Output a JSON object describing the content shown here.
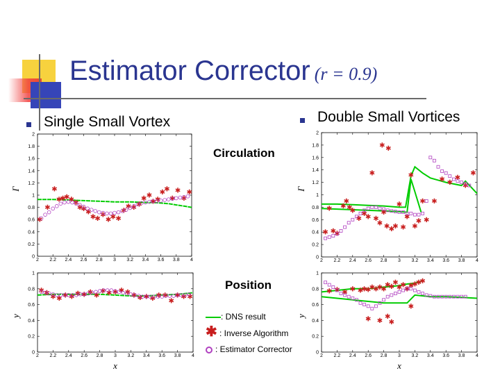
{
  "title": "Estimator Corrector",
  "title_param": "(r = 0.9)",
  "left_heading": "Single Small Vortex",
  "right_heading": "Double Small Vortices",
  "row_label_top": "Circulation",
  "row_label_bottom": "Position",
  "legend": {
    "dns": ": DNS result",
    "inverse": ": Inverse Algorithm",
    "estimator": ": Estimator Corrector"
  },
  "colors": {
    "title": "#2a3590",
    "dns": "#00cc00",
    "inverse": "#c81e1e",
    "estimator": "#b040c0"
  },
  "chart_data": [
    {
      "type": "scatter",
      "panel": "single-circulation",
      "xlabel": "",
      "ylabel": "Γ",
      "xlim": [
        2,
        4
      ],
      "ylim": [
        0,
        2
      ],
      "xticks": [
        "2",
        "2.2",
        "2.4",
        "2.6",
        "2.8",
        "3",
        "3.2",
        "3.4",
        "3.6",
        "3.8",
        "4"
      ],
      "yticks": [
        "0",
        "0.2",
        "0.4",
        "0.6",
        "0.8",
        "1",
        "1.2",
        "1.4",
        "1.6",
        "1.8",
        "2"
      ],
      "series": [
        {
          "kind": "dns",
          "x": [
            2.0,
            2.2,
            2.4,
            2.6,
            2.8,
            3.0,
            3.2,
            3.4,
            3.5,
            3.6,
            3.7,
            3.8,
            3.9,
            4.0
          ],
          "y": [
            0.93,
            0.93,
            0.92,
            0.91,
            0.9,
            0.89,
            0.89,
            0.88,
            0.88,
            0.87,
            0.86,
            0.84,
            0.82,
            0.8
          ]
        },
        {
          "kind": "inverse",
          "x": [
            2.03,
            2.13,
            2.22,
            2.28,
            2.33,
            2.38,
            2.44,
            2.5,
            2.55,
            2.6,
            2.66,
            2.72,
            2.78,
            2.85,
            2.92,
            2.98,
            3.05,
            3.12,
            3.18,
            3.25,
            3.32,
            3.38,
            3.45,
            3.5,
            3.56,
            3.62,
            3.68,
            3.75,
            3.82,
            3.9,
            3.97
          ],
          "y": [
            0.6,
            0.8,
            1.1,
            0.93,
            0.95,
            0.97,
            0.93,
            0.88,
            0.8,
            0.78,
            0.73,
            0.65,
            0.62,
            0.68,
            0.6,
            0.65,
            0.62,
            0.75,
            0.82,
            0.8,
            0.85,
            0.95,
            1.0,
            0.9,
            0.93,
            1.05,
            1.1,
            0.95,
            1.08,
            0.95,
            1.05
          ]
        },
        {
          "kind": "estimator",
          "x": [
            2.05,
            2.1,
            2.15,
            2.2,
            2.25,
            2.3,
            2.35,
            2.4,
            2.45,
            2.5,
            2.55,
            2.6,
            2.65,
            2.7,
            2.75,
            2.8,
            2.85,
            2.9,
            2.95,
            3.0,
            3.05,
            3.1,
            3.15,
            3.2,
            3.25,
            3.3,
            3.35,
            3.4,
            3.45,
            3.5,
            3.55,
            3.6,
            3.65,
            3.7,
            3.75,
            3.8,
            3.85,
            3.9,
            3.95
          ],
          "y": [
            0.62,
            0.68,
            0.72,
            0.78,
            0.82,
            0.86,
            0.88,
            0.89,
            0.88,
            0.86,
            0.84,
            0.81,
            0.78,
            0.76,
            0.74,
            0.72,
            0.71,
            0.7,
            0.7,
            0.71,
            0.72,
            0.74,
            0.76,
            0.79,
            0.82,
            0.85,
            0.87,
            0.88,
            0.89,
            0.9,
            0.9,
            0.91,
            0.92,
            0.93,
            0.94,
            0.95,
            0.96,
            0.97,
            0.98
          ]
        }
      ]
    },
    {
      "type": "scatter",
      "panel": "double-circulation",
      "xlabel": "",
      "ylabel": "Γ",
      "xlim": [
        2,
        4
      ],
      "ylim": [
        0,
        2
      ],
      "xticks": [
        "2",
        "2.2",
        "2.4",
        "2.6",
        "2.8",
        "3",
        "3.2",
        "3.4",
        "3.6",
        "3.8",
        "4"
      ],
      "yticks": [
        "0",
        "0.2",
        "0.4",
        "0.6",
        "0.8",
        "1",
        "1.2",
        "1.4",
        "1.6",
        "1.8",
        "2"
      ],
      "series": [
        {
          "kind": "dns-upper",
          "x": [
            2.0,
            2.2,
            2.4,
            2.6,
            2.8,
            3.0,
            3.08,
            3.15,
            3.2,
            3.3,
            3.4,
            3.6,
            3.8,
            3.85,
            4.0
          ],
          "y": [
            0.85,
            0.85,
            0.84,
            0.83,
            0.82,
            0.8,
            0.8,
            1.3,
            1.45,
            1.35,
            1.27,
            1.2,
            1.15,
            1.22,
            1.02
          ]
        },
        {
          "kind": "dns-lower",
          "x": [
            2.0,
            2.2,
            2.4,
            2.6,
            2.8,
            3.0,
            3.1,
            3.15,
            3.2,
            3.28
          ],
          "y": [
            0.78,
            0.77,
            0.76,
            0.75,
            0.74,
            0.73,
            0.72,
            1.25,
            1.05,
            0.72
          ]
        },
        {
          "kind": "inverse",
          "x": [
            2.05,
            2.1,
            2.15,
            2.2,
            2.28,
            2.32,
            2.36,
            2.4,
            2.48,
            2.55,
            2.6,
            2.65,
            2.7,
            2.75,
            2.78,
            2.8,
            2.84,
            2.86,
            2.9,
            2.95,
            3.0,
            3.05,
            3.1,
            3.15,
            3.2,
            3.25,
            3.3,
            3.35,
            3.45,
            3.55,
            3.65,
            3.75,
            3.85,
            3.95
          ],
          "y": [
            0.4,
            0.78,
            0.42,
            0.38,
            0.82,
            0.9,
            0.8,
            0.75,
            0.62,
            0.7,
            0.65,
            1.35,
            0.62,
            0.55,
            1.8,
            0.72,
            0.5,
            1.75,
            0.45,
            0.5,
            0.85,
            0.48,
            0.65,
            1.32,
            0.5,
            0.58,
            0.9,
            0.6,
            0.9,
            1.25,
            1.2,
            1.28,
            1.15,
            1.35
          ]
        },
        {
          "kind": "estimator",
          "x": [
            2.05,
            2.1,
            2.15,
            2.2,
            2.25,
            2.3,
            2.35,
            2.4,
            2.45,
            2.5,
            2.55,
            2.6,
            2.65,
            2.7,
            2.75,
            2.8,
            2.85,
            2.9,
            2.95,
            3.0,
            3.05,
            3.1,
            3.15,
            3.2,
            3.25,
            3.3,
            3.35,
            3.4,
            3.45,
            3.5,
            3.55,
            3.6,
            3.65,
            3.7,
            3.75,
            3.8,
            3.85,
            3.9
          ],
          "y": [
            0.3,
            0.32,
            0.34,
            0.37,
            0.42,
            0.48,
            0.55,
            0.6,
            0.65,
            0.7,
            0.75,
            0.78,
            0.8,
            0.8,
            0.78,
            0.77,
            0.75,
            0.74,
            0.73,
            0.72,
            0.72,
            0.7,
            0.7,
            0.68,
            0.68,
            0.7,
            0.9,
            1.6,
            1.55,
            1.45,
            1.38,
            1.35,
            1.3,
            1.25,
            1.22,
            1.2,
            1.18,
            1.15
          ]
        }
      ]
    },
    {
      "type": "scatter",
      "panel": "single-position",
      "xlabel": "x",
      "ylabel": "y",
      "xlim": [
        2,
        4
      ],
      "ylim": [
        0,
        1
      ],
      "xticks": [
        "2",
        "2.2",
        "2.4",
        "2.6",
        "2.8",
        "3",
        "3.2",
        "3.4",
        "3.6",
        "3.8",
        "4"
      ],
      "yticks": [
        "0",
        "0.2",
        "0.4",
        "0.6",
        "0.8",
        "1"
      ],
      "series": [
        {
          "kind": "dns",
          "x": [
            2.0,
            2.2,
            2.4,
            2.6,
            2.8,
            3.0,
            3.2,
            3.4,
            3.6,
            3.8,
            4.0
          ],
          "y": [
            0.72,
            0.73,
            0.73,
            0.73,
            0.73,
            0.72,
            0.71,
            0.71,
            0.72,
            0.73,
            0.75
          ]
        },
        {
          "kind": "inverse",
          "x": [
            2.05,
            2.12,
            2.2,
            2.28,
            2.36,
            2.44,
            2.52,
            2.6,
            2.68,
            2.76,
            2.84,
            2.92,
            3.0,
            3.08,
            3.16,
            3.24,
            3.32,
            3.4,
            3.48,
            3.56,
            3.64,
            3.72,
            3.8,
            3.88,
            3.96
          ],
          "y": [
            0.78,
            0.75,
            0.7,
            0.68,
            0.72,
            0.7,
            0.74,
            0.73,
            0.76,
            0.72,
            0.77,
            0.75,
            0.76,
            0.78,
            0.76,
            0.72,
            0.69,
            0.7,
            0.68,
            0.72,
            0.72,
            0.65,
            0.72,
            0.7,
            0.7
          ]
        },
        {
          "kind": "estimator",
          "x": [
            2.05,
            2.1,
            2.15,
            2.2,
            2.25,
            2.3,
            2.35,
            2.4,
            2.45,
            2.5,
            2.55,
            2.6,
            2.65,
            2.7,
            2.75,
            2.8,
            2.85,
            2.9,
            2.95,
            3.0,
            3.05,
            3.1,
            3.15,
            3.2,
            3.25,
            3.3,
            3.35,
            3.4,
            3.45,
            3.5,
            3.55,
            3.6,
            3.65,
            3.7,
            3.75,
            3.8,
            3.85,
            3.9,
            3.95
          ],
          "y": [
            0.76,
            0.75,
            0.74,
            0.73,
            0.72,
            0.72,
            0.72,
            0.72,
            0.72,
            0.72,
            0.73,
            0.73,
            0.74,
            0.75,
            0.76,
            0.77,
            0.78,
            0.78,
            0.78,
            0.77,
            0.76,
            0.75,
            0.74,
            0.73,
            0.72,
            0.71,
            0.7,
            0.7,
            0.7,
            0.7,
            0.7,
            0.7,
            0.71,
            0.71,
            0.71,
            0.72,
            0.72,
            0.72,
            0.73
          ]
        }
      ]
    },
    {
      "type": "scatter",
      "panel": "double-position",
      "xlabel": "x",
      "ylabel": "y",
      "xlim": [
        2,
        4
      ],
      "ylim": [
        0,
        1
      ],
      "xticks": [
        "2",
        "2.2",
        "2.4",
        "2.6",
        "2.8",
        "3",
        "3.2",
        "3.4",
        "3.6",
        "3.8",
        "4"
      ],
      "yticks": [
        "0",
        "0.2",
        "0.4",
        "0.6",
        "0.8",
        "1"
      ],
      "series": [
        {
          "kind": "dns-upper",
          "x": [
            2.0,
            2.2,
            2.4,
            2.6,
            2.8,
            3.0,
            3.1,
            3.2,
            3.3
          ],
          "y": [
            0.76,
            0.78,
            0.8,
            0.8,
            0.82,
            0.84,
            0.86,
            0.87,
            0.9
          ]
        },
        {
          "kind": "dns-lower",
          "x": [
            2.0,
            2.2,
            2.4,
            2.6,
            2.8,
            3.0,
            3.1,
            3.2,
            3.4,
            3.6,
            3.8,
            4.0
          ],
          "y": [
            0.7,
            0.68,
            0.66,
            0.64,
            0.62,
            0.62,
            0.62,
            0.72,
            0.7,
            0.7,
            0.69,
            0.68
          ]
        },
        {
          "kind": "inverse",
          "x": [
            2.1,
            2.2,
            2.3,
            2.4,
            2.5,
            2.55,
            2.6,
            2.65,
            2.7,
            2.75,
            2.8,
            2.85,
            2.9,
            2.95,
            3.0,
            3.05,
            3.1,
            3.15,
            3.2,
            3.25,
            3.3,
            2.6,
            2.75,
            2.85,
            2.9,
            3.15
          ],
          "y": [
            0.77,
            0.79,
            0.76,
            0.8,
            0.78,
            0.8,
            0.79,
            0.82,
            0.8,
            0.82,
            0.8,
            0.85,
            0.83,
            0.88,
            0.82,
            0.85,
            0.8,
            0.84,
            0.86,
            0.88,
            0.9,
            0.42,
            0.4,
            0.45,
            0.38,
            0.58
          ]
        },
        {
          "kind": "estimator",
          "x": [
            2.05,
            2.1,
            2.15,
            2.2,
            2.25,
            2.3,
            2.35,
            2.4,
            2.45,
            2.5,
            2.55,
            2.6,
            2.65,
            2.7,
            2.75,
            2.8,
            2.85,
            2.9,
            2.95,
            3.0,
            3.05,
            3.1,
            3.15,
            3.2,
            3.25,
            3.3,
            3.35,
            3.4,
            3.45,
            3.5,
            3.55,
            3.6,
            3.65,
            3.7,
            3.75,
            3.8,
            3.85
          ],
          "y": [
            0.88,
            0.85,
            0.82,
            0.78,
            0.74,
            0.72,
            0.7,
            0.68,
            0.66,
            0.62,
            0.6,
            0.58,
            0.55,
            0.58,
            0.62,
            0.66,
            0.7,
            0.72,
            0.74,
            0.76,
            0.78,
            0.8,
            0.8,
            0.78,
            0.76,
            0.74,
            0.72,
            0.71,
            0.7,
            0.7,
            0.7,
            0.7,
            0.7,
            0.7,
            0.7,
            0.7,
            0.7
          ]
        }
      ]
    }
  ]
}
